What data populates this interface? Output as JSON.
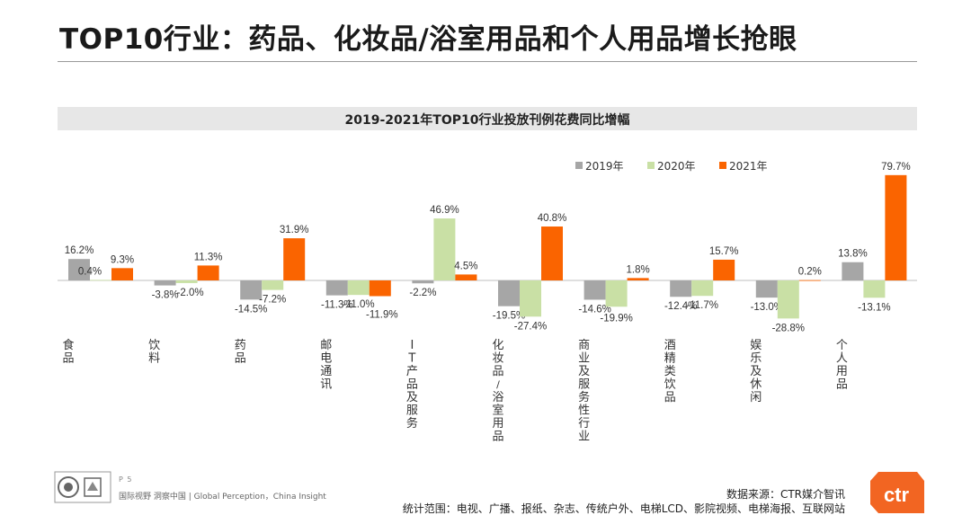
{
  "page": {
    "title": "TOP10行业：药品、化妆品/浴室用品和个人用品增长抢眼",
    "page_number": "P 5",
    "tagline": "国际视野 洞察中国 | Global Perception，China Insight",
    "source": "数据来源：CTR媒介智讯",
    "scope": "统计范围：电视、广播、报纸、杂志、传统户外、电梯LCD、影院视频、电梯海报、互联网站",
    "logo_text": "ctr"
  },
  "colors": {
    "series_2019": "#a6a6a6",
    "series_2020": "#c9e0a5",
    "series_2021": "#fa6400",
    "banner": "#e7e7e7",
    "logo": "#f26522"
  },
  "chart_data": {
    "type": "bar",
    "title": "2019-2021年TOP10行业投放刊例花费同比增幅",
    "categories": [
      "食品",
      "饮料",
      "药品",
      "邮电通讯",
      "IT产品及服务",
      "化妆品/浴室用品",
      "商业及服务性行业",
      "酒精类饮品",
      "娱乐及休闲",
      "个人用品"
    ],
    "series": [
      {
        "name": "2019年",
        "values": [
          16.2,
          -3.8,
          -14.5,
          -11.3,
          -2.2,
          -19.5,
          -14.6,
          -12.4,
          -13.0,
          13.8
        ]
      },
      {
        "name": "2020年",
        "values": [
          0.4,
          -2.0,
          -7.2,
          -11.0,
          46.9,
          -27.4,
          -19.9,
          -11.7,
          -28.8,
          -13.1
        ]
      },
      {
        "name": "2021年",
        "values": [
          9.3,
          11.3,
          31.9,
          -11.9,
          4.5,
          40.8,
          1.8,
          15.7,
          0.2,
          79.7
        ]
      }
    ],
    "value_format": "percent_1dp",
    "legend_position": "top-right",
    "grid": false
  }
}
